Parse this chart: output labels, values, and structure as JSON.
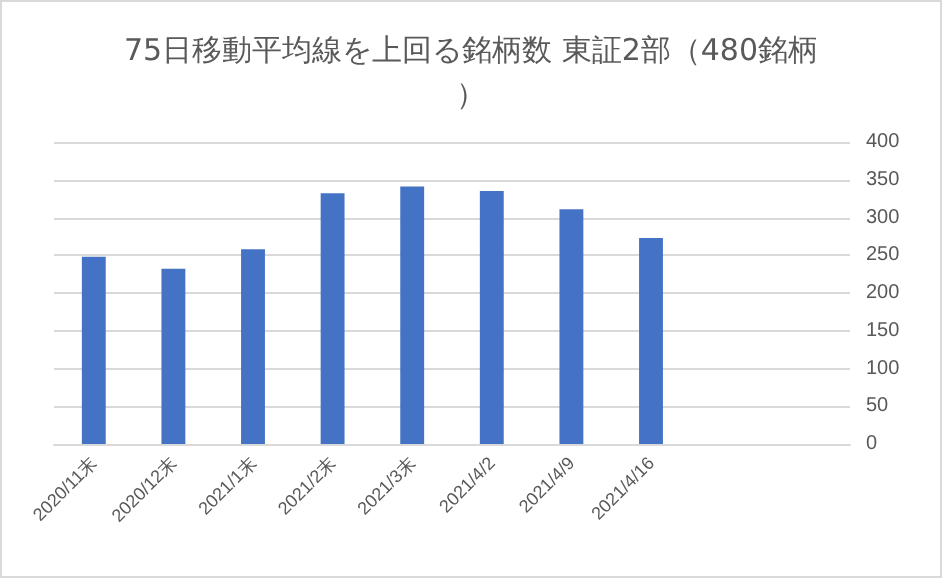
{
  "chart_data": {
    "type": "bar",
    "title": "75日移動平均線を上回る銘柄数 東証2部（480銘柄）",
    "categories": [
      "2020/11末",
      "2020/12末",
      "2021/1末",
      "2021/2末",
      "2021/3末",
      "2021/4/2",
      "2021/4/9",
      "2021/4/16",
      null,
      null
    ],
    "values": [
      248,
      232,
      258,
      332,
      341,
      335,
      311,
      273,
      null,
      null
    ],
    "color": "#4472c4",
    "ylim": [
      0,
      400
    ],
    "yticks": [
      0,
      50,
      100,
      150,
      200,
      250,
      300,
      350,
      400
    ],
    "grid": "y"
  }
}
